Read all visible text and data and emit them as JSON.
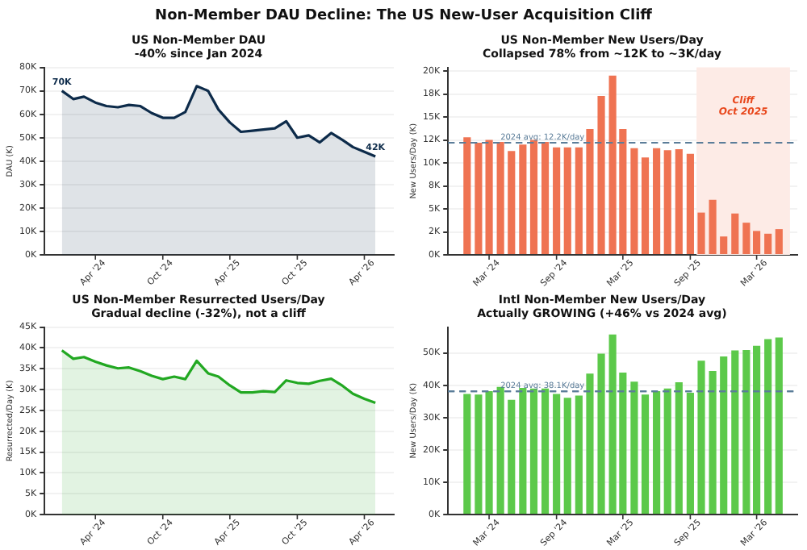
{
  "chart_data": [
    {
      "type": "area",
      "title": "US Non-Member DAU",
      "subtitle": "-40% since Jan 2024",
      "ylabel": "DAU (K)",
      "grid": "y",
      "legend": false,
      "x": [
        "2024-01",
        "2024-02",
        "2024-03",
        "2024-04",
        "2024-05",
        "2024-06",
        "2024-07",
        "2024-08",
        "2024-09",
        "2024-10",
        "2024-11",
        "2024-12",
        "2025-01",
        "2025-02",
        "2025-03",
        "2025-04",
        "2025-05",
        "2025-06",
        "2025-07",
        "2025-08",
        "2025-09",
        "2025-10",
        "2025-11",
        "2025-12",
        "2026-01",
        "2026-02",
        "2026-03",
        "2026-04",
        "2026-05"
      ],
      "series": [
        {
          "color": "#0d2b4a",
          "values": [
            70,
            66.5,
            67.5,
            65,
            63.5,
            63,
            64,
            63.5,
            60.5,
            58.5,
            58.5,
            61,
            72,
            70,
            62,
            56.5,
            52.5,
            53,
            53.5,
            54,
            57,
            50,
            51,
            48,
            52,
            49,
            46,
            44,
            42
          ]
        }
      ],
      "xlim": [
        "2023-11-15",
        "2026-06-20"
      ],
      "xticks": [
        {
          "value": "2024-04",
          "label": "Apr '24"
        },
        {
          "value": "2024-10",
          "label": "Oct '24"
        },
        {
          "value": "2025-04",
          "label": "Apr '25"
        },
        {
          "value": "2025-10",
          "label": "Oct '25"
        },
        {
          "value": "2026-04",
          "label": "Apr '26"
        }
      ],
      "ylim": [
        0,
        80
      ],
      "yticks": [
        {
          "value": 0,
          "label": "0K"
        },
        {
          "value": 10,
          "label": "10K"
        },
        {
          "value": 20,
          "label": "20K"
        },
        {
          "value": 30,
          "label": "30K"
        },
        {
          "value": 40,
          "label": "40K"
        },
        {
          "value": 50,
          "label": "50K"
        },
        {
          "value": 60,
          "label": "60K"
        },
        {
          "value": 70,
          "label": "70K"
        },
        {
          "value": 80,
          "label": "80K"
        }
      ],
      "annotations": [
        "Non-Member DAU Decline: The US New-User Acquisition Cliff",
        {
          "text": "70K",
          "x": "2024-01",
          "y": 70
        },
        {
          "text": "42K",
          "x": "2026-05",
          "y": 42
        }
      ]
    },
    {
      "type": "bar",
      "title": "US Non-Member New Users/Day",
      "subtitle": "Collapsed 78% from ~12K to ~3K/day",
      "ylabel": "New Users/Day (K)",
      "grid": "y",
      "legend": false,
      "x": [
        "2024-01",
        "2024-02",
        "2024-03",
        "2024-04",
        "2024-05",
        "2024-06",
        "2024-07",
        "2024-08",
        "2024-09",
        "2024-10",
        "2024-11",
        "2024-12",
        "2025-01",
        "2025-02",
        "2025-03",
        "2025-04",
        "2025-05",
        "2025-06",
        "2025-07",
        "2025-08",
        "2025-09",
        "2025-10",
        "2025-11",
        "2025-12",
        "2026-01",
        "2026-02",
        "2026-03",
        "2026-04",
        "2026-05"
      ],
      "series": [
        {
          "color": "#ef7352",
          "values": [
            12.8,
            12.2,
            12.5,
            12.3,
            11.3,
            12,
            12.5,
            12.3,
            11.7,
            11.7,
            11.7,
            13.7,
            17.3,
            19.5,
            13.7,
            11.6,
            10.6,
            11.6,
            11.4,
            11.5,
            11,
            4.6,
            6,
            2,
            4.5,
            3.5,
            2.6,
            2.3,
            2.8
          ]
        }
      ],
      "xlim": [
        "2023-11-10",
        "2026-06-20"
      ],
      "xticks": [
        {
          "value": "2024-03",
          "label": "Mar '24"
        },
        {
          "value": "2024-09",
          "label": "Sep '24"
        },
        {
          "value": "2025-03",
          "label": "Mar '25"
        },
        {
          "value": "2025-09",
          "label": "Sep '25"
        },
        {
          "value": "2026-03",
          "label": "Mar '26"
        }
      ],
      "ylim": [
        0,
        20.4
      ],
      "yticks": [
        {
          "value": 0,
          "label": "0K"
        },
        {
          "value": 2.5,
          "label": "2K"
        },
        {
          "value": 5,
          "label": "5K"
        },
        {
          "value": 7.5,
          "label": "8K"
        },
        {
          "value": 10,
          "label": "10K"
        },
        {
          "value": 12.5,
          "label": "12K"
        },
        {
          "value": 15,
          "label": "15K"
        },
        {
          "value": 17.5,
          "label": "18K"
        },
        {
          "value": 20,
          "label": "20K"
        }
      ],
      "ref_lines": [
        {
          "axis": "y",
          "value": 12.2,
          "label": "2024 avg: 12.2K/day",
          "color": "#5b7d99",
          "line_style": "dashed"
        }
      ],
      "bands": [
        {
          "axis": "x",
          "from": "2025-09-18",
          "to": "2026-05-31",
          "label": "Cliff\nOct 2025",
          "color": "#fdebe6"
        }
      ]
    },
    {
      "type": "area",
      "title": "US Non-Member Resurrected Users/Day",
      "subtitle": "Gradual decline (-32%), not a cliff",
      "ylabel": "Resurrected/Day (K)",
      "grid": "y",
      "legend": false,
      "x": [
        "2024-01",
        "2024-02",
        "2024-03",
        "2024-04",
        "2024-05",
        "2024-06",
        "2024-07",
        "2024-08",
        "2024-09",
        "2024-10",
        "2024-11",
        "2024-12",
        "2025-01",
        "2025-02",
        "2025-03",
        "2025-04",
        "2025-05",
        "2025-06",
        "2025-07",
        "2025-08",
        "2025-09",
        "2025-10",
        "2025-11",
        "2025-12",
        "2026-01",
        "2026-02",
        "2026-03",
        "2026-04",
        "2026-05"
      ],
      "series": [
        {
          "color": "#22a822",
          "values": [
            39.4,
            37.4,
            37.8,
            36.7,
            35.8,
            35.1,
            35.3,
            34.4,
            33.3,
            32.5,
            33.1,
            32.5,
            36.9,
            33.9,
            33.1,
            31,
            29.3,
            29.3,
            29.6,
            29.4,
            32.2,
            31.6,
            31.4,
            32.1,
            32.6,
            30.9,
            29,
            27.8,
            26.8
          ]
        }
      ],
      "xlim": [
        "2023-11-15",
        "2026-06-20"
      ],
      "xticks": [
        {
          "value": "2024-04",
          "label": "Apr '24"
        },
        {
          "value": "2024-10",
          "label": "Oct '24"
        },
        {
          "value": "2025-04",
          "label": "Apr '25"
        },
        {
          "value": "2025-10",
          "label": "Oct '25"
        },
        {
          "value": "2026-04",
          "label": "Apr '26"
        }
      ],
      "ylim": [
        0,
        45
      ],
      "yticks": [
        {
          "value": 0,
          "label": "0K"
        },
        {
          "value": 5,
          "label": "5K"
        },
        {
          "value": 10,
          "label": "10K"
        },
        {
          "value": 15,
          "label": "15K"
        },
        {
          "value": 20,
          "label": "20K"
        },
        {
          "value": 25,
          "label": "25K"
        },
        {
          "value": 30,
          "label": "30K"
        },
        {
          "value": 35,
          "label": "35K"
        },
        {
          "value": 40,
          "label": "40K"
        },
        {
          "value": 45,
          "label": "45K"
        }
      ]
    },
    {
      "type": "bar",
      "title": "Intl Non-Member New Users/Day",
      "subtitle": "Actually GROWING (+46% vs 2024 avg)",
      "ylabel": "New Users/Day (K)",
      "grid": "y",
      "legend": false,
      "x": [
        "2024-01",
        "2024-02",
        "2024-03",
        "2024-04",
        "2024-05",
        "2024-06",
        "2024-07",
        "2024-08",
        "2024-09",
        "2024-10",
        "2024-11",
        "2024-12",
        "2025-01",
        "2025-02",
        "2025-03",
        "2025-04",
        "2025-05",
        "2025-06",
        "2025-07",
        "2025-08",
        "2025-09",
        "2025-10",
        "2025-11",
        "2025-12",
        "2026-01",
        "2026-02",
        "2026-03",
        "2026-04",
        "2026-05"
      ],
      "series": [
        {
          "color": "#5cc94a",
          "values": [
            37.3,
            37.1,
            38.2,
            39.5,
            35.5,
            39.2,
            39,
            39,
            37.3,
            36.1,
            36.8,
            43.6,
            49.8,
            55.7,
            43.9,
            41.1,
            37.1,
            38.2,
            39,
            40.9,
            37.7,
            47.6,
            44.4,
            48.9,
            50.8,
            50.9,
            52.2,
            54.3,
            54.8
          ]
        }
      ],
      "xlim": [
        "2023-11-10",
        "2026-06-20"
      ],
      "xticks": [
        {
          "value": "2024-03",
          "label": "Mar '24"
        },
        {
          "value": "2024-09",
          "label": "Sep '24"
        },
        {
          "value": "2025-03",
          "label": "Mar '25"
        },
        {
          "value": "2025-09",
          "label": "Sep '25"
        },
        {
          "value": "2026-03",
          "label": "Mar '26"
        }
      ],
      "ylim": [
        0,
        58
      ],
      "yticks": [
        {
          "value": 0,
          "label": "0K"
        },
        {
          "value": 10,
          "label": "10K"
        },
        {
          "value": 20,
          "label": "20K"
        },
        {
          "value": 30,
          "label": "30K"
        },
        {
          "value": 40,
          "label": "40K"
        },
        {
          "value": 50,
          "label": "50K"
        }
      ],
      "ref_lines": [
        {
          "axis": "y",
          "value": 38.1,
          "label": "2024 avg: 38.1K/day",
          "color": "#5b7d99",
          "line_style": "dashed"
        }
      ]
    }
  ]
}
